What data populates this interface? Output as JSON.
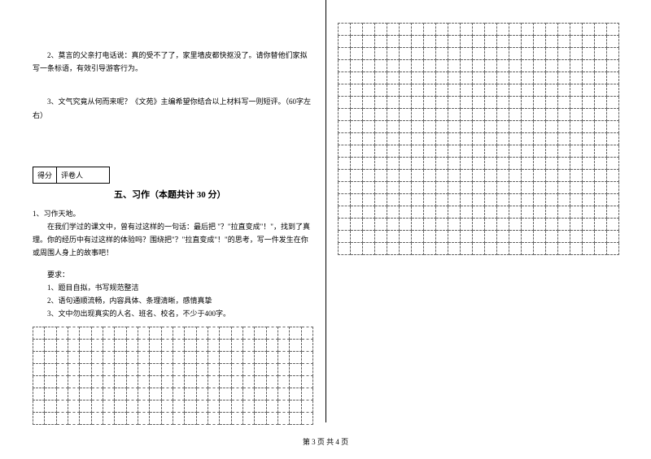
{
  "left": {
    "q2": "2、莫言的父亲打电话说：真的受不了了，家里墙皮都快抠没了。请你替他们家拟写一条标语，有效引导游客行为。",
    "q3": "3、文气究竟从何而来呢？《文苑》主编希望你结合以上材料写一则短评。（60字左右）",
    "score_label1": "得分",
    "score_label2": "评卷人",
    "section_title": "五、习作（本题共计 30 分）",
    "essay_num": "1、习作天地。",
    "essay_p1": "在我们学过的课文中，曾有过这样的一句话：最后把 \"？\"拉直变成\"！\"，找到了真理。你的经历中有过这样的体验吗？围绕把\"？\"拉直变成\"！\"的思考，写一件发生在你或周围人身上的故事吧！",
    "essay_req_label": "要求：",
    "essay_req1": "1、题目自拟，书写规范整洁",
    "essay_req2": "2、语句通顺流畅，内容具体、条理清晰，感情真挚",
    "essay_req3": "3、文中勿出现真实的人名、班名、校名，不少于400字。"
  },
  "footer": "第 3 页 共 4 页",
  "grid": {
    "left_rows": 8,
    "left_cols": 24,
    "right_rows": 19,
    "right_cols": 23,
    "border_color": "#666666"
  }
}
